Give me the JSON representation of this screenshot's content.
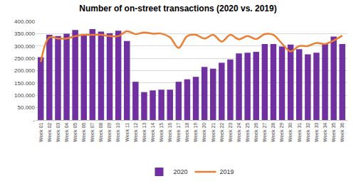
{
  "chart_data": {
    "type": "bar",
    "title": "Number of on-street transactions (2020 vs. 2019)",
    "categories": [
      "Week 01",
      "Week 02",
      "Week 03",
      "Week 04",
      "Week 05",
      "Week 06",
      "Week 07",
      "Week 08",
      "Week 09",
      "Week 10",
      "Week 11",
      "Week 12",
      "Week 13",
      "Week 14",
      "Week 15",
      "Week 16",
      "Week 17",
      "Week 18",
      "Week 19",
      "Week 20",
      "Week 21",
      "Week 22",
      "Week 23",
      "Week 24",
      "Week 25",
      "Week 26",
      "Week 27",
      "Week 28",
      "Week 29",
      "Week 30",
      "Week 31",
      "Week 32",
      "Week 33",
      "Week 34",
      "Week 35",
      "Week 36"
    ],
    "series": [
      {
        "name": "2020",
        "type": "bar",
        "color": "#7030a0",
        "values": [
          255000,
          345000,
          340000,
          350000,
          365000,
          345000,
          368000,
          358000,
          352000,
          362000,
          320000,
          155000,
          113000,
          120000,
          123000,
          123000,
          155000,
          165000,
          175000,
          215000,
          208000,
          232000,
          245000,
          270000,
          273000,
          276000,
          308000,
          308000,
          298000,
          306000,
          287000,
          266000,
          273000,
          310000,
          338000,
          308000
        ]
      },
      {
        "name": "2019",
        "type": "line",
        "color": "#ed7d31",
        "line_style": "smooth",
        "values": [
          235000,
          335000,
          330000,
          330000,
          340000,
          345000,
          345000,
          345000,
          340000,
          340000,
          360000,
          348000,
          355000,
          350000,
          350000,
          335000,
          292000,
          340000,
          345000,
          330000,
          345000,
          318000,
          345000,
          327000,
          340000,
          328000,
          348000,
          345000,
          310000,
          278000,
          300000,
          300000,
          312000,
          308000,
          322000,
          342000
        ]
      }
    ],
    "ylim": [
      0,
      400000
    ],
    "yticks": [
      {
        "value": 0,
        "label": "-"
      },
      {
        "value": 50000,
        "label": "50.000"
      },
      {
        "value": 100000,
        "label": "100.000"
      },
      {
        "value": 150000,
        "label": "150.000"
      },
      {
        "value": 200000,
        "label": "200.000"
      },
      {
        "value": 250000,
        "label": "250.000"
      },
      {
        "value": 300000,
        "label": "300.000"
      },
      {
        "value": 350000,
        "label": "350.000"
      },
      {
        "value": 400000,
        "label": "400.000"
      }
    ],
    "grid": true,
    "legend": "bottom"
  }
}
